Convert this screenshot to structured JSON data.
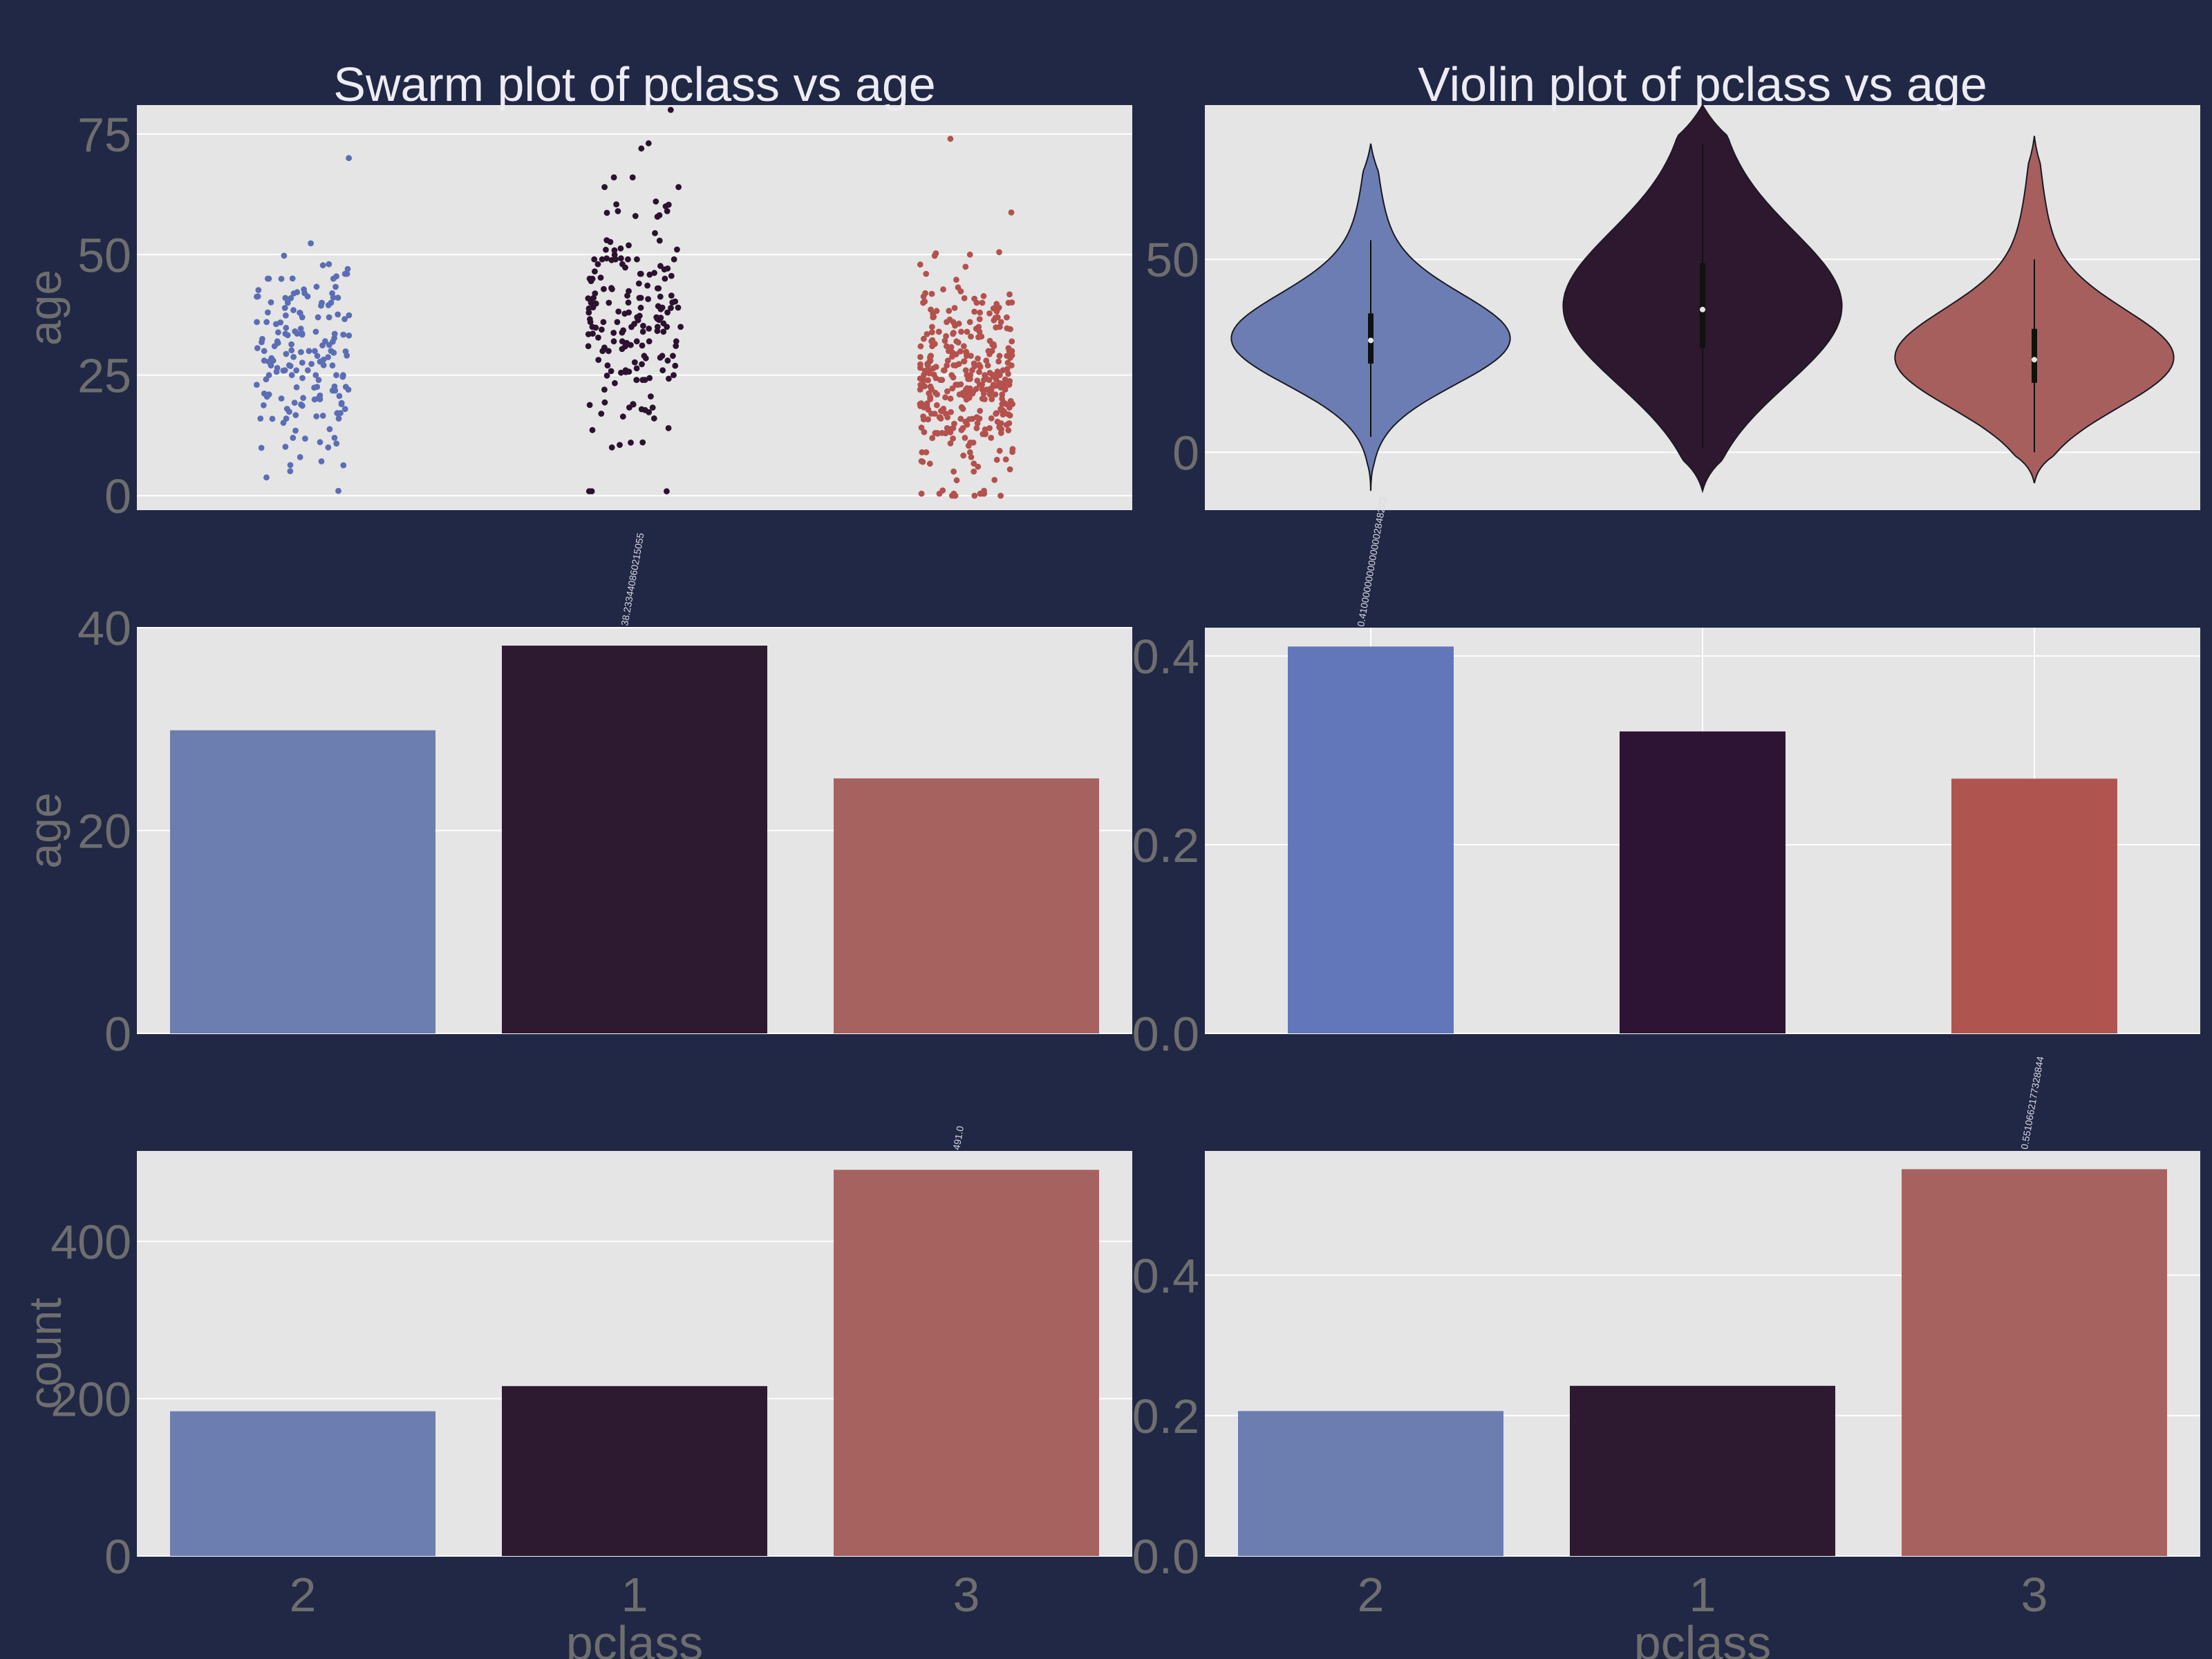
{
  "figure": {
    "background": "#212846",
    "panel_background": "#e5e5e5",
    "grid_color": "#ffffff",
    "tick_label_color": "#6e6e6e",
    "axis_title_color": "#6e6e6e",
    "title_color": "#ececf2"
  },
  "category_order": [
    "2",
    "1",
    "3"
  ],
  "colors": {
    "swarm": [
      "#5b6eb5",
      "#2c1230",
      "#b5514d"
    ],
    "violin": [
      "#6c7db4",
      "#2e1830",
      "#a65f5c"
    ],
    "bar_muted": [
      "#6c7daf",
      "#2d1a31",
      "#a6625f"
    ],
    "bar_saturated": [
      "#6277ba",
      "#2d1334",
      "#b05450"
    ]
  },
  "chart_data": [
    {
      "id": "swarm",
      "type": "scatter",
      "title": "Swarm plot of pclass vs age",
      "xlabel": "",
      "ylabel": "age",
      "categories": [
        "2",
        "1",
        "3"
      ],
      "ylim": [
        -3,
        81
      ],
      "yticks": [
        0,
        25,
        50,
        75
      ],
      "grid": true,
      "series": [
        {
          "category": "2",
          "count": 173,
          "min": 0.67,
          "max": 70,
          "median": 29,
          "spread": 11
        },
        {
          "category": "1",
          "count": 186,
          "min": 0.92,
          "max": 80,
          "median": 37,
          "spread": 13
        },
        {
          "category": "3",
          "count": 355,
          "min": 0.42,
          "max": 74,
          "median": 24,
          "spread": 11
        }
      ]
    },
    {
      "id": "violin",
      "type": "violin",
      "title": "Violin plot of pclass vs age",
      "xlabel": "",
      "ylabel": "",
      "categories": [
        "2",
        "1",
        "3"
      ],
      "ylim": [
        -15,
        90
      ],
      "yticks": [
        0,
        50
      ],
      "grid": true,
      "series": [
        {
          "category": "2",
          "min": -10,
          "max": 80,
          "median": 29,
          "q1": 23,
          "q3": 36,
          "whisker_low": 4,
          "whisker_high": 55
        },
        {
          "category": "1",
          "min": -10,
          "max": 90,
          "median": 37,
          "q1": 27,
          "q3": 49,
          "whisker_low": 1,
          "whisker_high": 80
        },
        {
          "category": "3",
          "min": -8,
          "max": 82,
          "median": 24,
          "q1": 18,
          "q3": 32,
          "whisker_low": 0,
          "whisker_high": 50
        }
      ]
    },
    {
      "id": "mean-age",
      "type": "bar",
      "title": "",
      "xlabel": "",
      "ylabel": "age",
      "categories": [
        "2",
        "1",
        "3"
      ],
      "values": [
        29.88,
        38.23,
        25.14
      ],
      "data_labels": [
        "",
        "38.233440860215055",
        ""
      ],
      "ylim": [
        0,
        40
      ],
      "yticks": [
        0,
        20,
        40
      ],
      "grid": true
    },
    {
      "id": "survival-rate",
      "type": "bar",
      "title": "",
      "xlabel": "",
      "ylabel": "",
      "categories": [
        "2",
        "1",
        "3"
      ],
      "values": [
        0.41,
        0.32,
        0.27
      ],
      "data_labels": [
        "0.41000000000000002848222",
        "",
        ""
      ],
      "ylim": [
        0,
        0.43
      ],
      "yticks": [
        0.0,
        0.2,
        0.4
      ],
      "grid": true
    },
    {
      "id": "count",
      "type": "bar",
      "title": "",
      "xlabel": "pclass",
      "ylabel": "count",
      "categories": [
        "2",
        "1",
        "3"
      ],
      "values": [
        184,
        216,
        491
      ],
      "data_labels": [
        "",
        "",
        "491.0"
      ],
      "ylim": [
        0,
        515
      ],
      "yticks": [
        0,
        200,
        400
      ],
      "grid": true
    },
    {
      "id": "proportion",
      "type": "bar",
      "title": "",
      "xlabel": "pclass",
      "ylabel": "",
      "categories": [
        "2",
        "1",
        "3"
      ],
      "values": [
        0.2065,
        0.2424,
        0.551
      ],
      "data_labels": [
        "",
        "",
        "0.5510662177328844"
      ],
      "ylim": [
        0,
        0.577
      ],
      "yticks": [
        0.0,
        0.2,
        0.4
      ],
      "grid": true
    }
  ]
}
